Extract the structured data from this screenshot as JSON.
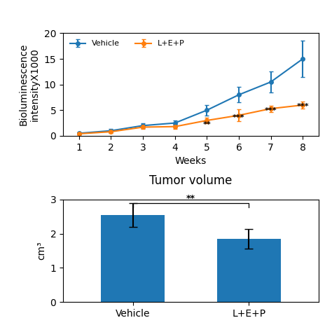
{
  "chart_data": [
    {
      "type": "line",
      "x": [
        1,
        2,
        3,
        4,
        5,
        6,
        7,
        8
      ],
      "series": [
        {
          "name": "Vehicle",
          "marker": "o",
          "values": [
            0.5,
            1.0,
            2.0,
            2.5,
            5.0,
            8.0,
            10.5,
            15.0
          ],
          "errors": [
            0.2,
            0.3,
            0.5,
            0.5,
            1.0,
            1.5,
            2.0,
            3.5
          ]
        },
        {
          "name": "L+E+P",
          "marker": "o",
          "values": [
            0.4,
            0.8,
            1.7,
            1.8,
            3.0,
            4.0,
            5.3,
            6.0
          ],
          "errors": [
            0.15,
            0.2,
            0.3,
            0.4,
            0.6,
            1.2,
            0.6,
            0.7
          ]
        }
      ],
      "x_label": "Weeks",
      "y_label": "Bioluminescence\nintensityX1000",
      "xlim": [
        0.5,
        8.5
      ],
      "xticks": [
        1,
        2,
        3,
        4,
        5,
        6,
        7,
        8
      ],
      "ylim": [
        0,
        20
      ],
      "yticks": [
        0,
        5,
        10,
        15,
        20
      ],
      "legend": "upper left",
      "annotations": [
        {
          "text": "**",
          "x": 5,
          "y": 1.5
        },
        {
          "text": "***",
          "x": 6,
          "y": 2.8
        },
        {
          "text": "***",
          "x": 7,
          "y": 4.2
        },
        {
          "text": "***",
          "x": 8,
          "y": 5.0
        }
      ]
    },
    {
      "type": "bar",
      "title": "Tumor volume",
      "categories": [
        "Vehicle",
        "L+E+P"
      ],
      "values": [
        2.55,
        1.85
      ],
      "errors": [
        0.35,
        0.28
      ],
      "y_label": "cm³",
      "ylim": [
        0,
        3
      ],
      "yticks": [
        0,
        1,
        2,
        3
      ],
      "annotations": [
        {
          "text": "**",
          "between": [
            "Vehicle",
            "L+E+P"
          ],
          "y": 2.9
        }
      ]
    }
  ]
}
